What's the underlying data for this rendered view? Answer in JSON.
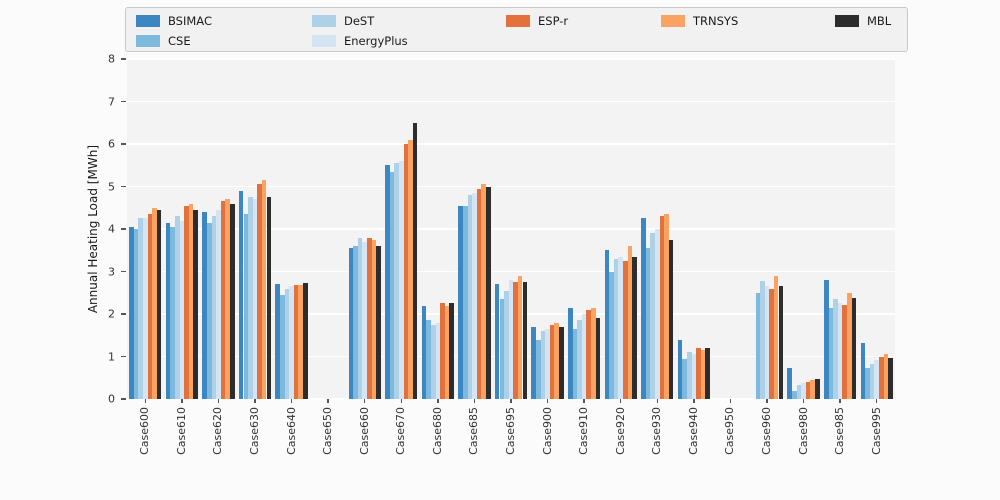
{
  "figure": {
    "ylabel": "Annual Heating Load [MWh]"
  },
  "chart_data": {
    "type": "bar",
    "title": "",
    "xlabel": "",
    "ylabel": "Annual Heating Load [MWh]",
    "ylim": [
      0,
      8
    ],
    "yticks": [
      0,
      1,
      2,
      3,
      4,
      5,
      6,
      7,
      8
    ],
    "grid": true,
    "legend_position": "top",
    "categories": [
      "Case600",
      "Case610",
      "Case620",
      "Case630",
      "Case640",
      "Case650",
      "Case660",
      "Case670",
      "Case680",
      "Case685",
      "Case695",
      "Case900",
      "Case910",
      "Case920",
      "Case930",
      "Case940",
      "Case950",
      "Case960",
      "Case980",
      "Case985",
      "Case995"
    ],
    "series": [
      {
        "name": "BSIMAC",
        "color": "#3c87c1",
        "values": [
          4.05,
          4.15,
          4.4,
          4.9,
          2.7,
          0,
          3.55,
          5.5,
          2.2,
          4.55,
          2.7,
          1.7,
          2.15,
          3.5,
          4.25,
          1.4,
          0,
          0,
          0.73,
          2.8,
          1.32
        ]
      },
      {
        "name": "CSE",
        "color": "#7db9dd",
        "values": [
          4.0,
          4.05,
          4.15,
          4.35,
          2.45,
          0,
          3.6,
          5.35,
          1.85,
          4.55,
          2.35,
          1.4,
          1.65,
          3.0,
          3.55,
          0.95,
          0,
          2.5,
          0.2,
          2.15,
          0.73
        ]
      },
      {
        "name": "DeST",
        "color": "#aed1e8",
        "values": [
          4.25,
          4.3,
          4.3,
          4.75,
          2.6,
          0,
          3.8,
          5.55,
          1.75,
          4.8,
          2.55,
          1.6,
          1.85,
          3.3,
          3.9,
          1.1,
          0,
          2.78,
          0.33,
          2.36,
          0.83
        ]
      },
      {
        "name": "EnergyPlus",
        "color": "#d4e4f3",
        "values": [
          4.25,
          4.2,
          4.45,
          4.7,
          2.65,
          0,
          3.7,
          5.6,
          1.8,
          4.85,
          2.8,
          1.65,
          2.0,
          3.35,
          4.0,
          1.05,
          0,
          2.65,
          0.38,
          2.25,
          0.92
        ]
      },
      {
        "name": "ESP-r",
        "color": "#e2713b",
        "values": [
          4.35,
          4.55,
          4.65,
          5.05,
          2.68,
          0,
          3.8,
          6.0,
          2.25,
          4.95,
          2.75,
          1.75,
          2.1,
          3.25,
          4.3,
          1.2,
          0,
          2.6,
          0.4,
          2.22,
          1.0
        ]
      },
      {
        "name": "TRNSYS",
        "color": "#f8a361",
        "values": [
          4.5,
          4.6,
          4.7,
          5.15,
          2.68,
          0,
          3.75,
          6.1,
          2.2,
          5.05,
          2.9,
          1.8,
          2.15,
          3.6,
          4.35,
          1.15,
          0,
          2.9,
          0.45,
          2.5,
          1.05
        ]
      },
      {
        "name": "MBL",
        "color": "#2d2d2d",
        "values": [
          4.45,
          4.45,
          4.58,
          4.75,
          2.72,
          0,
          3.6,
          6.5,
          2.25,
          5.0,
          2.76,
          1.7,
          1.9,
          3.35,
          3.75,
          1.2,
          0,
          2.65,
          0.47,
          2.38,
          0.97
        ]
      }
    ]
  }
}
